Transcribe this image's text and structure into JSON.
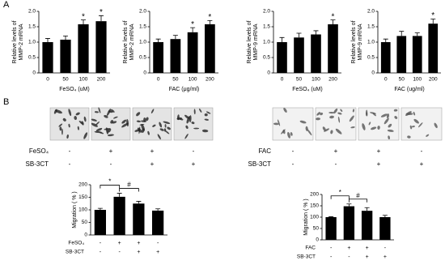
{
  "panel_labels": [
    "A",
    "B"
  ],
  "image_strips": [
    {
      "rows": [
        {
          "name": "FeSO₄",
          "signs": [
            "-",
            "+",
            "+",
            "-"
          ]
        },
        {
          "name": "SB-3CT",
          "signs": [
            "-",
            "-",
            "+",
            "+"
          ]
        }
      ]
    },
    {
      "rows": [
        {
          "name": "FAC",
          "signs": [
            "-",
            "+",
            "+",
            "-"
          ]
        },
        {
          "name": "SB-3CT",
          "signs": [
            "-",
            "-",
            "+",
            "+"
          ]
        }
      ]
    }
  ],
  "chart_data": [
    {
      "type": "bar",
      "ylabel": [
        "Relative levels of",
        "MMP-2 mRNA"
      ],
      "xlabel": "FeSO₄ (uM)",
      "categories": [
        "0",
        "50",
        "100",
        "200"
      ],
      "values": [
        1.0,
        1.08,
        1.58,
        1.68
      ],
      "errors": [
        0.12,
        0.12,
        0.14,
        0.18
      ],
      "significance": [
        null,
        null,
        "*",
        "*"
      ],
      "color": "#000000",
      "ylim": [
        0,
        2
      ],
      "yticks": [
        0,
        0.5,
        {
          "value": 1,
          "label": "1.0"
        },
        1.5,
        {
          "value": 2,
          "label": "2.0"
        }
      ]
    },
    {
      "type": "bar",
      "ylabel": [
        "Relative levels of",
        "MMP-2 mRNA"
      ],
      "xlabel": "FAC (μg/ml)",
      "categories": [
        "0",
        "50",
        "100",
        "200"
      ],
      "values": [
        1.0,
        1.1,
        1.32,
        1.58
      ],
      "errors": [
        0.1,
        0.12,
        0.15,
        0.12
      ],
      "significance": [
        null,
        null,
        "*",
        "*"
      ],
      "color": "#000000",
      "ylim": [
        0,
        2
      ],
      "yticks": [
        0,
        0.5,
        {
          "value": 1,
          "label": "1.0"
        },
        1.5,
        {
          "value": 2,
          "label": "2.0"
        }
      ]
    },
    {
      "type": "bar",
      "ylabel": [
        "Relative levels of",
        "MMP-9 mRNA"
      ],
      "xlabel": "FeSO₄ (uM)",
      "categories": [
        "0",
        "50",
        "100",
        "200"
      ],
      "values": [
        1.0,
        1.15,
        1.25,
        1.58
      ],
      "errors": [
        0.15,
        0.14,
        0.12,
        0.14
      ],
      "significance": [
        null,
        null,
        null,
        "*"
      ],
      "color": "#000000",
      "ylim": [
        0,
        2
      ],
      "yticks": [
        0,
        0.5,
        {
          "value": 1,
          "label": "1.0"
        },
        1.5,
        {
          "value": 2,
          "label": "2.0"
        }
      ]
    },
    {
      "type": "bar",
      "ylabel": [
        "Relative levels of",
        "MMP-9 mRNA"
      ],
      "xlabel": "FAC (ug/ml)",
      "categories": [
        "0",
        "50",
        "100",
        "200"
      ],
      "values": [
        1.0,
        1.2,
        1.2,
        1.6
      ],
      "errors": [
        0.1,
        0.15,
        0.1,
        0.15
      ],
      "significance": [
        null,
        null,
        null,
        "*"
      ],
      "color": "#000000",
      "ylim": [
        0,
        2
      ],
      "yticks": [
        0,
        0.5,
        {
          "value": 1,
          "label": "1.0"
        },
        1.5,
        {
          "value": 2,
          "label": "2.0"
        }
      ]
    },
    {
      "type": "bar",
      "ylabel": [
        "Migration ( % )"
      ],
      "values": [
        100,
        152,
        125,
        97
      ],
      "errors": [
        6,
        14,
        9,
        7
      ],
      "color": "#000000",
      "brackets": [
        "*",
        "#"
      ],
      "treatment_rows": [
        {
          "name": "FeSO₄",
          "signs": [
            "-",
            "+",
            "+",
            "-"
          ]
        },
        {
          "name": "SB-3CT",
          "signs": [
            "-",
            "-",
            "+",
            "+"
          ]
        }
      ],
      "ylim": [
        0,
        200
      ],
      "yticks": [
        0,
        50,
        100,
        150,
        200
      ]
    },
    {
      "type": "bar",
      "ylabel": [
        "Migration ( % )"
      ],
      "values": [
        100,
        148,
        128,
        100
      ],
      "errors": [
        2,
        10,
        14,
        8
      ],
      "color": "#000000",
      "brackets": [
        "*",
        "#"
      ],
      "treatment_rows": [
        {
          "name": "FAC",
          "signs": [
            "-",
            "+",
            "+",
            "-"
          ]
        },
        {
          "name": "SB-3CT",
          "signs": [
            "-",
            "-",
            "+",
            "+"
          ]
        }
      ],
      "ylim": [
        0,
        200
      ],
      "yticks": [
        0,
        50,
        100,
        150,
        200
      ]
    }
  ]
}
